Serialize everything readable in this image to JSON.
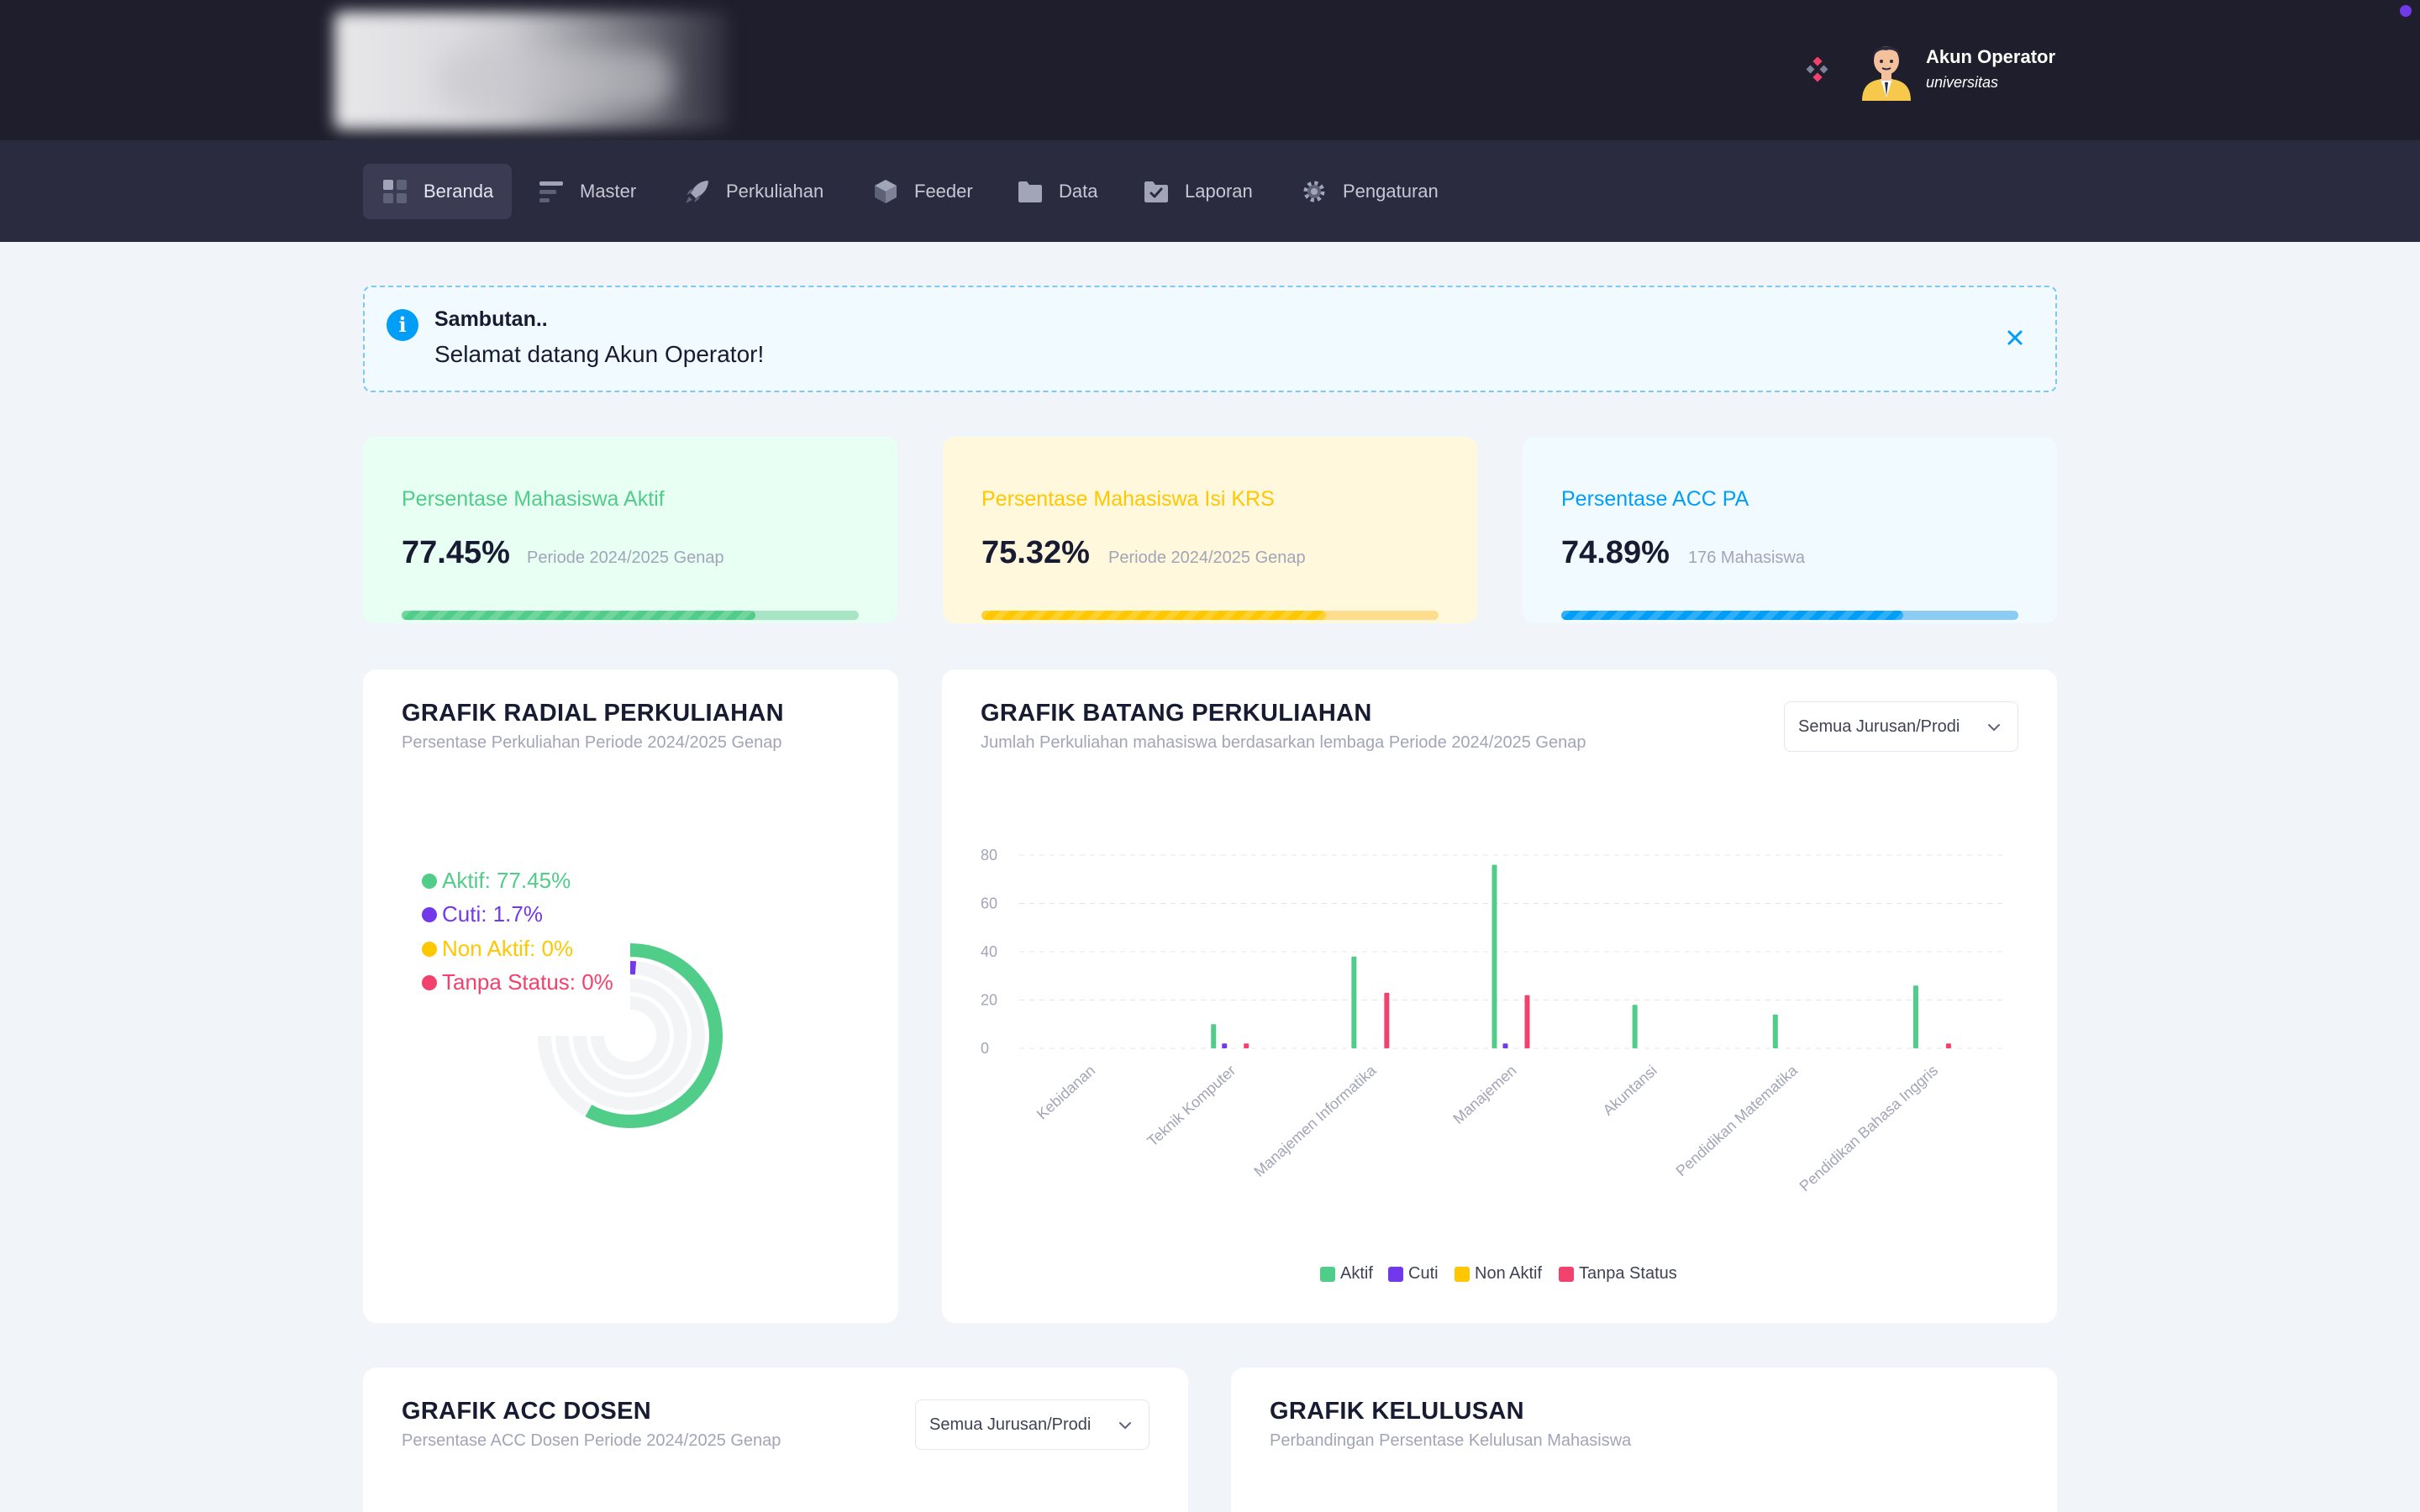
{
  "header": {
    "user_name": "Akun Operator",
    "user_role": "universitas"
  },
  "nav": [
    {
      "label": "Beranda",
      "icon": "dashboard-icon",
      "active": true
    },
    {
      "label": "Master",
      "icon": "menu-lines-icon",
      "active": false
    },
    {
      "label": "Perkuliahan",
      "icon": "rocket-icon",
      "active": false
    },
    {
      "label": "Feeder",
      "icon": "cube-icon",
      "active": false
    },
    {
      "label": "Data",
      "icon": "folder-icon",
      "active": false
    },
    {
      "label": "Laporan",
      "icon": "folder-check-icon",
      "active": false
    },
    {
      "label": "Pengaturan",
      "icon": "gear-icon",
      "active": false
    }
  ],
  "alert": {
    "title": "Sambutan..",
    "message": "Selamat datang Akun Operator!"
  },
  "stats": [
    {
      "title": "Persentase Mahasiswa Aktif",
      "value": "77.45%",
      "sub": "Periode 2024/2025 Genap",
      "progress": 0.7745,
      "color": "#50cd89",
      "bg": "#e8fff3",
      "track": "#a7e5c5"
    },
    {
      "title": "Persentase Mahasiswa Isi KRS",
      "value": "75.32%",
      "sub": "Periode 2024/2025 Genap",
      "progress": 0.7532,
      "color": "#ffc700",
      "bg": "#fff8dd",
      "track": "#ffdd8f"
    },
    {
      "title": "Persentase ACC PA",
      "value": "74.89%",
      "sub": "176 Mahasiswa",
      "progress": 0.7489,
      "color": "#009ef7",
      "bg": "#f1faff",
      "track": "#8ccbf2"
    }
  ],
  "radial": {
    "title": "GRAFIK RADIAL PERKULIAHAN",
    "subtitle": "Persentase Perkuliahan Periode 2024/2025 Genap",
    "legend": [
      {
        "label": "Aktif: 77.45%",
        "color": "#50cd89"
      },
      {
        "label": "Cuti: 1.7%",
        "color": "#7239ea"
      },
      {
        "label": "Non Aktif: 0%",
        "color": "#ffc700"
      },
      {
        "label": "Tanpa Status: 0%",
        "color": "#f1416c"
      }
    ]
  },
  "bar": {
    "title": "GRAFIK BATANG PERKULIAHAN",
    "subtitle": "Jumlah Perkuliahan mahasiswa berdasarkan lembaga Periode 2024/2025 Genap",
    "filter": "Semua Jurusan/Prodi"
  },
  "acc": {
    "title": "GRAFIK ACC DOSEN",
    "subtitle": "Persentase ACC Dosen Periode 2024/2025 Genap",
    "filter": "Semua Jurusan/Prodi"
  },
  "kelulusan": {
    "title": "GRAFIK KELULUSAN",
    "subtitle": "Perbandingan Persentase Kelulusan Mahasiswa"
  },
  "chart_data": [
    {
      "type": "radial",
      "categories": [
        "Aktif",
        "Cuti",
        "Non Aktif",
        "Tanpa Status"
      ],
      "values": [
        77.45,
        1.7,
        0,
        0
      ],
      "colors": [
        "#50cd89",
        "#7239ea",
        "#ffc700",
        "#f1416c"
      ],
      "max": 100
    },
    {
      "type": "bar",
      "categories": [
        "Kebidanan",
        "Teknik Komputer",
        "Manajemen Informatika",
        "Manajemen",
        "Akuntansi",
        "Pendidikan Matematika",
        "Pendidikan Bahasa Inggris"
      ],
      "series": [
        {
          "name": "Aktif",
          "color": "#50cd89",
          "values": [
            0,
            10,
            38,
            76,
            18,
            14,
            26
          ]
        },
        {
          "name": "Cuti",
          "color": "#7239ea",
          "values": [
            0,
            2,
            0,
            2,
            0,
            0,
            0
          ]
        },
        {
          "name": "Non Aktif",
          "color": "#ffc700",
          "values": [
            0,
            0,
            0,
            0,
            0,
            0,
            0
          ]
        },
        {
          "name": "Tanpa Status",
          "color": "#f1416c",
          "values": [
            0,
            2,
            23,
            22,
            0,
            0,
            2
          ]
        }
      ],
      "yticks": [
        "80",
        "60",
        "40",
        "20",
        "0"
      ],
      "ylim": [
        0,
        80
      ],
      "grid": true,
      "legend_position": "bottom"
    }
  ]
}
